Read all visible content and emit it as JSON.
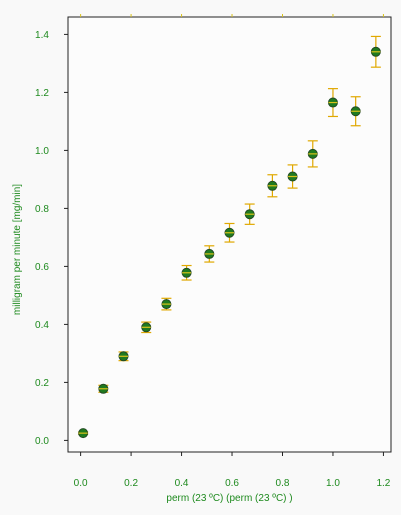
{
  "colors": {
    "background": "#f9f9f9",
    "plot_background": "#fcfcfc",
    "axis": "#222222",
    "text": "#1e8a1e",
    "marker_fill": "#1f7a1f",
    "marker_edge": "#234a23",
    "marker_stripe": "#d8c21a",
    "error_bar": "#e0a800"
  },
  "chart_data": {
    "type": "scatter",
    "title": "",
    "xlabel": "perm (23 ºC) (perm (23 ºC) )",
    "ylabel": "milligram per minute [mg/min]",
    "xlim": [
      -0.05,
      1.23
    ],
    "ylim": [
      -0.04,
      1.46
    ],
    "xticks": [
      0.0,
      0.2,
      0.4,
      0.6,
      0.8,
      1.0,
      1.2
    ],
    "xtick_labels": [
      "0.0",
      "0.2",
      "0.4",
      "0.6",
      "0.8",
      "1.0",
      "1.2"
    ],
    "yticks": [
      0.0,
      0.2,
      0.4,
      0.6,
      0.8,
      1.0,
      1.2,
      1.4
    ],
    "ytick_labels": [
      "0.0",
      "0.2",
      "0.4",
      "0.6",
      "0.8",
      "1.0",
      "1.2",
      "1.4"
    ],
    "grid": false,
    "legend": "none",
    "series": [
      {
        "x": [
          0.01,
          0.09,
          0.17,
          0.26,
          0.34,
          0.42,
          0.51,
          0.59,
          0.67,
          0.76,
          0.84,
          0.92,
          1.0,
          1.09,
          1.17
        ],
        "y": [
          0.025,
          0.178,
          0.29,
          0.39,
          0.47,
          0.578,
          0.643,
          0.716,
          0.78,
          0.878,
          0.91,
          0.988,
          1.165,
          1.135,
          1.34
        ],
        "yerr": [
          0.004,
          0.012,
          0.015,
          0.018,
          0.02,
          0.025,
          0.028,
          0.032,
          0.035,
          0.038,
          0.04,
          0.045,
          0.048,
          0.05,
          0.053
        ]
      }
    ]
  }
}
